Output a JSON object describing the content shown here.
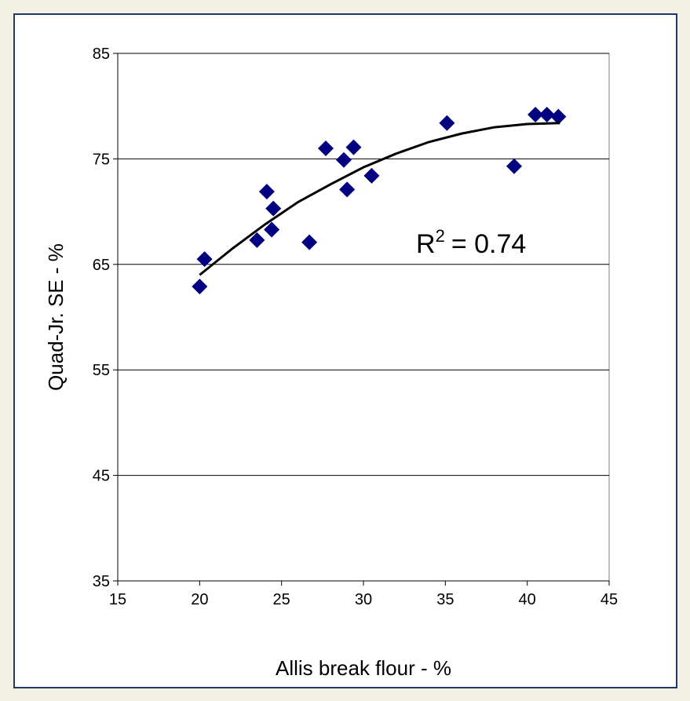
{
  "chart_data": {
    "type": "scatter",
    "x_label": "Allis break flour - %",
    "y_label": "Quad-Jr. SE - %",
    "series": [
      {
        "color": "#000080",
        "x": [
          20.0,
          20.3,
          23.5,
          24.1,
          24.5,
          24.4,
          26.7,
          27.7,
          28.8,
          29.0,
          29.4,
          30.5,
          35.1,
          39.2,
          40.5,
          41.2,
          41.9
        ],
        "values": [
          62.9,
          65.5,
          67.3,
          71.9,
          70.3,
          68.3,
          67.1,
          76.0,
          74.9,
          72.1,
          76.1,
          73.4,
          78.4,
          74.3,
          79.2,
          79.2,
          79.0
        ]
      }
    ],
    "trendline": {
      "color": "#000000",
      "x": [
        20,
        22,
        24,
        26,
        28,
        30,
        32,
        34,
        36,
        38,
        40,
        42
      ],
      "values": [
        64.0,
        66.5,
        68.8,
        70.9,
        72.6,
        74.2,
        75.5,
        76.6,
        77.4,
        78.0,
        78.3,
        78.4
      ]
    },
    "annotation": {
      "base": "R",
      "superscript": "2",
      "text": "= 0.74"
    },
    "xlim": [
      15,
      45
    ],
    "xticks": [
      15,
      20,
      25,
      30,
      35,
      40,
      45
    ],
    "ylim": [
      35,
      85
    ],
    "yticks": [
      35,
      45,
      55,
      65,
      75,
      85
    ],
    "grid": true
  }
}
